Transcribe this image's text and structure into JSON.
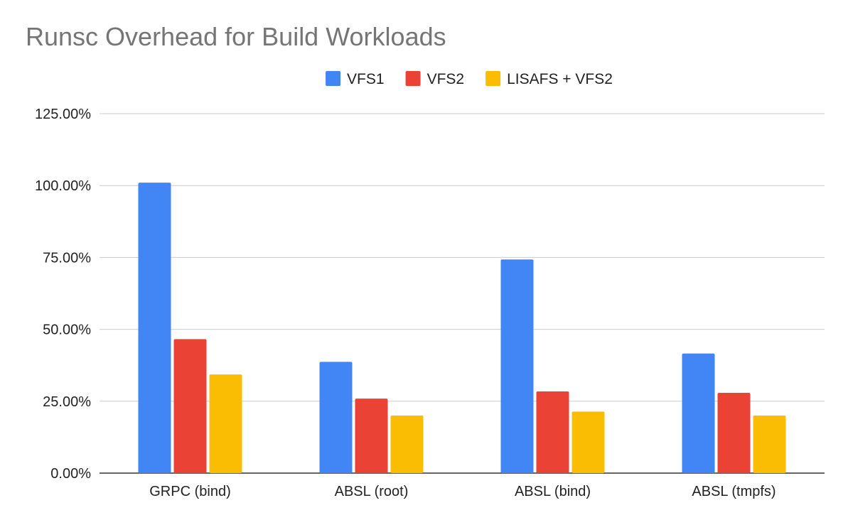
{
  "chart_data": {
    "type": "bar",
    "title": "Runsc Overhead for Build Workloads",
    "xlabel": "",
    "ylabel": "",
    "categories": [
      "GRPC (bind)",
      "ABSL (root)",
      "ABSL (bind)",
      "ABSL (tmpfs)"
    ],
    "series": [
      {
        "name": "VFS1",
        "color": "#4285f4",
        "values": [
          101.0,
          38.7,
          74.3,
          41.6
        ]
      },
      {
        "name": "VFS2",
        "color": "#ea4335",
        "values": [
          46.6,
          25.9,
          28.4,
          27.9
        ]
      },
      {
        "name": "LISAFS + VFS2",
        "color": "#fbbc04",
        "values": [
          34.3,
          20.0,
          21.4,
          20.0
        ]
      }
    ],
    "ylim": [
      0,
      125
    ],
    "yticks": [
      0,
      25,
      50,
      75,
      100,
      125
    ],
    "ytick_labels": [
      "0.00%",
      "25.00%",
      "50.00%",
      "75.00%",
      "100.00%",
      "125.00%"
    ],
    "grid": true,
    "legend_position": "top-center"
  }
}
